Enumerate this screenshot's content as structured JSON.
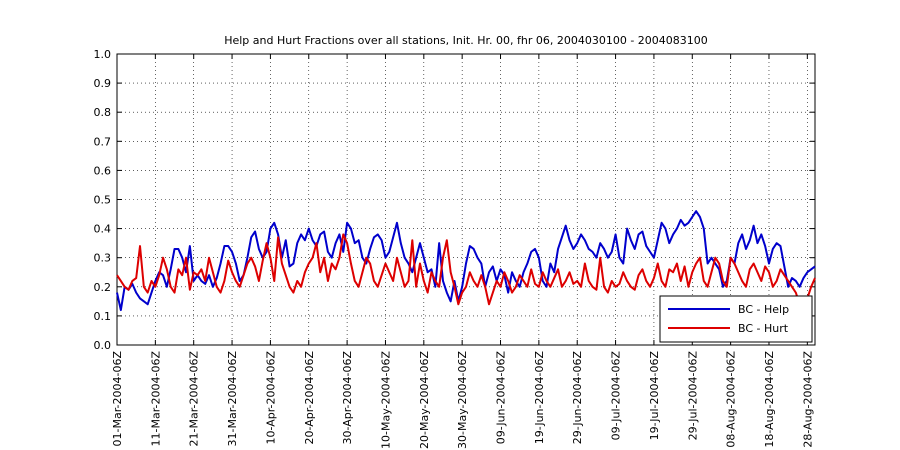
{
  "chart_data": {
    "type": "line",
    "title": "Help and Hurt Fractions over all stations, Init. Hr. 00, fhr 06, 2004030100 - 2004083100",
    "categories": [
      "01-Mar-2004-06Z",
      null,
      null,
      null,
      null,
      null,
      null,
      null,
      null,
      null,
      "11-Mar-2004-06Z",
      null,
      null,
      null,
      null,
      null,
      null,
      null,
      null,
      null,
      "21-Mar-2004-06Z",
      null,
      null,
      null,
      null,
      null,
      null,
      null,
      null,
      null,
      "31-Mar-2004-06Z",
      null,
      null,
      null,
      null,
      null,
      null,
      null,
      null,
      null,
      "10-Apr-2004-06Z",
      null,
      null,
      null,
      null,
      null,
      null,
      null,
      null,
      null,
      "20-Apr-2004-06Z",
      null,
      null,
      null,
      null,
      null,
      null,
      null,
      null,
      null,
      "30-Apr-2004-06Z",
      null,
      null,
      null,
      null,
      null,
      null,
      null,
      null,
      null,
      "10-May-2004-06Z",
      null,
      null,
      null,
      null,
      null,
      null,
      null,
      null,
      null,
      "20-May-2004-06Z",
      null,
      null,
      null,
      null,
      null,
      null,
      null,
      null,
      null,
      "30-May-2004-06Z",
      null,
      null,
      null,
      null,
      null,
      null,
      null,
      null,
      null,
      "09-Jun-2004-06Z",
      null,
      null,
      null,
      null,
      null,
      null,
      null,
      null,
      null,
      "19-Jun-2004-06Z",
      null,
      null,
      null,
      null,
      null,
      null,
      null,
      null,
      null,
      "29-Jun-2004-06Z",
      null,
      null,
      null,
      null,
      null,
      null,
      null,
      null,
      null,
      "09-Jul-2004-06Z",
      null,
      null,
      null,
      null,
      null,
      null,
      null,
      null,
      null,
      "19-Jul-2004-06Z",
      null,
      null,
      null,
      null,
      null,
      null,
      null,
      null,
      null,
      "29-Jul-2004-06Z",
      null,
      null,
      null,
      null,
      null,
      null,
      null,
      null,
      null,
      "08-Aug-2004-06Z",
      null,
      null,
      null,
      null,
      null,
      null,
      null,
      null,
      null,
      "18-Aug-2004-06Z",
      null,
      null,
      null,
      null,
      null,
      null,
      null,
      null,
      null,
      "28-Aug-2004-06Z",
      null,
      null
    ],
    "series": [
      {
        "name": "BC - Help",
        "color": "#0000cc",
        "values": [
          0.18,
          0.12,
          0.2,
          0.19,
          0.21,
          0.18,
          0.16,
          0.15,
          0.14,
          0.18,
          0.22,
          0.25,
          0.24,
          0.2,
          0.26,
          0.33,
          0.33,
          0.3,
          0.25,
          0.34,
          0.22,
          0.24,
          0.22,
          0.21,
          0.24,
          0.2,
          0.23,
          0.28,
          0.34,
          0.34,
          0.32,
          0.28,
          0.22,
          0.24,
          0.3,
          0.37,
          0.39,
          0.33,
          0.3,
          0.32,
          0.4,
          0.42,
          0.38,
          0.3,
          0.36,
          0.27,
          0.28,
          0.35,
          0.38,
          0.36,
          0.4,
          0.36,
          0.34,
          0.38,
          0.39,
          0.32,
          0.3,
          0.35,
          0.38,
          0.32,
          0.42,
          0.4,
          0.35,
          0.36,
          0.3,
          0.28,
          0.33,
          0.37,
          0.38,
          0.36,
          0.3,
          0.32,
          0.37,
          0.42,
          0.35,
          0.3,
          0.28,
          0.25,
          0.3,
          0.35,
          0.3,
          0.25,
          0.26,
          0.2,
          0.35,
          0.22,
          0.18,
          0.15,
          0.22,
          0.15,
          0.2,
          0.28,
          0.34,
          0.33,
          0.3,
          0.28,
          0.2,
          0.25,
          0.27,
          0.22,
          0.26,
          0.24,
          0.18,
          0.25,
          0.22,
          0.2,
          0.25,
          0.28,
          0.32,
          0.33,
          0.3,
          0.22,
          0.2,
          0.28,
          0.25,
          0.33,
          0.37,
          0.41,
          0.36,
          0.33,
          0.35,
          0.38,
          0.36,
          0.33,
          0.32,
          0.3,
          0.35,
          0.33,
          0.3,
          0.32,
          0.38,
          0.3,
          0.28,
          0.4,
          0.36,
          0.33,
          0.38,
          0.39,
          0.34,
          0.32,
          0.3,
          0.36,
          0.42,
          0.4,
          0.35,
          0.38,
          0.4,
          0.43,
          0.41,
          0.42,
          0.44,
          0.46,
          0.44,
          0.4,
          0.28,
          0.3,
          0.28,
          0.26,
          0.2,
          0.22,
          0.3,
          0.28,
          0.35,
          0.38,
          0.33,
          0.36,
          0.41,
          0.35,
          0.38,
          0.34,
          0.28,
          0.33,
          0.35,
          0.34,
          0.27,
          0.2,
          0.23,
          0.22,
          0.2,
          0.23,
          0.25,
          0.26,
          0.27
        ]
      },
      {
        "name": "BC - Hurt",
        "color": "#dd0000",
        "values": [
          0.24,
          0.22,
          0.2,
          0.19,
          0.22,
          0.23,
          0.34,
          0.2,
          0.18,
          0.22,
          0.2,
          0.24,
          0.3,
          0.26,
          0.2,
          0.18,
          0.26,
          0.24,
          0.3,
          0.19,
          0.25,
          0.24,
          0.26,
          0.22,
          0.3,
          0.25,
          0.2,
          0.18,
          0.22,
          0.29,
          0.25,
          0.22,
          0.2,
          0.24,
          0.28,
          0.3,
          0.27,
          0.22,
          0.29,
          0.35,
          0.3,
          0.22,
          0.37,
          0.28,
          0.24,
          0.2,
          0.18,
          0.22,
          0.2,
          0.25,
          0.28,
          0.3,
          0.35,
          0.25,
          0.3,
          0.22,
          0.28,
          0.26,
          0.3,
          0.38,
          0.35,
          0.28,
          0.22,
          0.2,
          0.25,
          0.3,
          0.28,
          0.22,
          0.2,
          0.24,
          0.28,
          0.25,
          0.22,
          0.3,
          0.25,
          0.2,
          0.22,
          0.36,
          0.2,
          0.28,
          0.22,
          0.18,
          0.25,
          0.22,
          0.2,
          0.3,
          0.36,
          0.25,
          0.2,
          0.14,
          0.18,
          0.2,
          0.25,
          0.22,
          0.2,
          0.24,
          0.2,
          0.14,
          0.18,
          0.22,
          0.2,
          0.25,
          0.22,
          0.18,
          0.2,
          0.24,
          0.22,
          0.2,
          0.26,
          0.21,
          0.2,
          0.25,
          0.22,
          0.2,
          0.23,
          0.26,
          0.2,
          0.22,
          0.25,
          0.21,
          0.22,
          0.2,
          0.28,
          0.22,
          0.2,
          0.19,
          0.3,
          0.2,
          0.18,
          0.22,
          0.2,
          0.21,
          0.25,
          0.22,
          0.2,
          0.19,
          0.24,
          0.26,
          0.22,
          0.2,
          0.23,
          0.28,
          0.22,
          0.2,
          0.26,
          0.25,
          0.28,
          0.22,
          0.27,
          0.2,
          0.25,
          0.28,
          0.3,
          0.22,
          0.2,
          0.25,
          0.3,
          0.28,
          0.22,
          0.2,
          0.3,
          0.28,
          0.25,
          0.22,
          0.2,
          0.26,
          0.28,
          0.25,
          0.22,
          0.27,
          0.25,
          0.2,
          0.22,
          0.26,
          0.24,
          0.22,
          0.2,
          0.18,
          0.14,
          0.12,
          0.16,
          0.2,
          0.23
        ]
      }
    ],
    "ylim": [
      0,
      1
    ],
    "yticks": [
      {
        "value": 0,
        "label": "0.0"
      },
      0.1,
      0.2,
      0.3,
      0.4,
      0.5,
      0.6,
      0.7,
      0.8,
      0.9,
      {
        "value": 1,
        "label": "1.0"
      }
    ],
    "grid": true,
    "legend": "southeast"
  }
}
